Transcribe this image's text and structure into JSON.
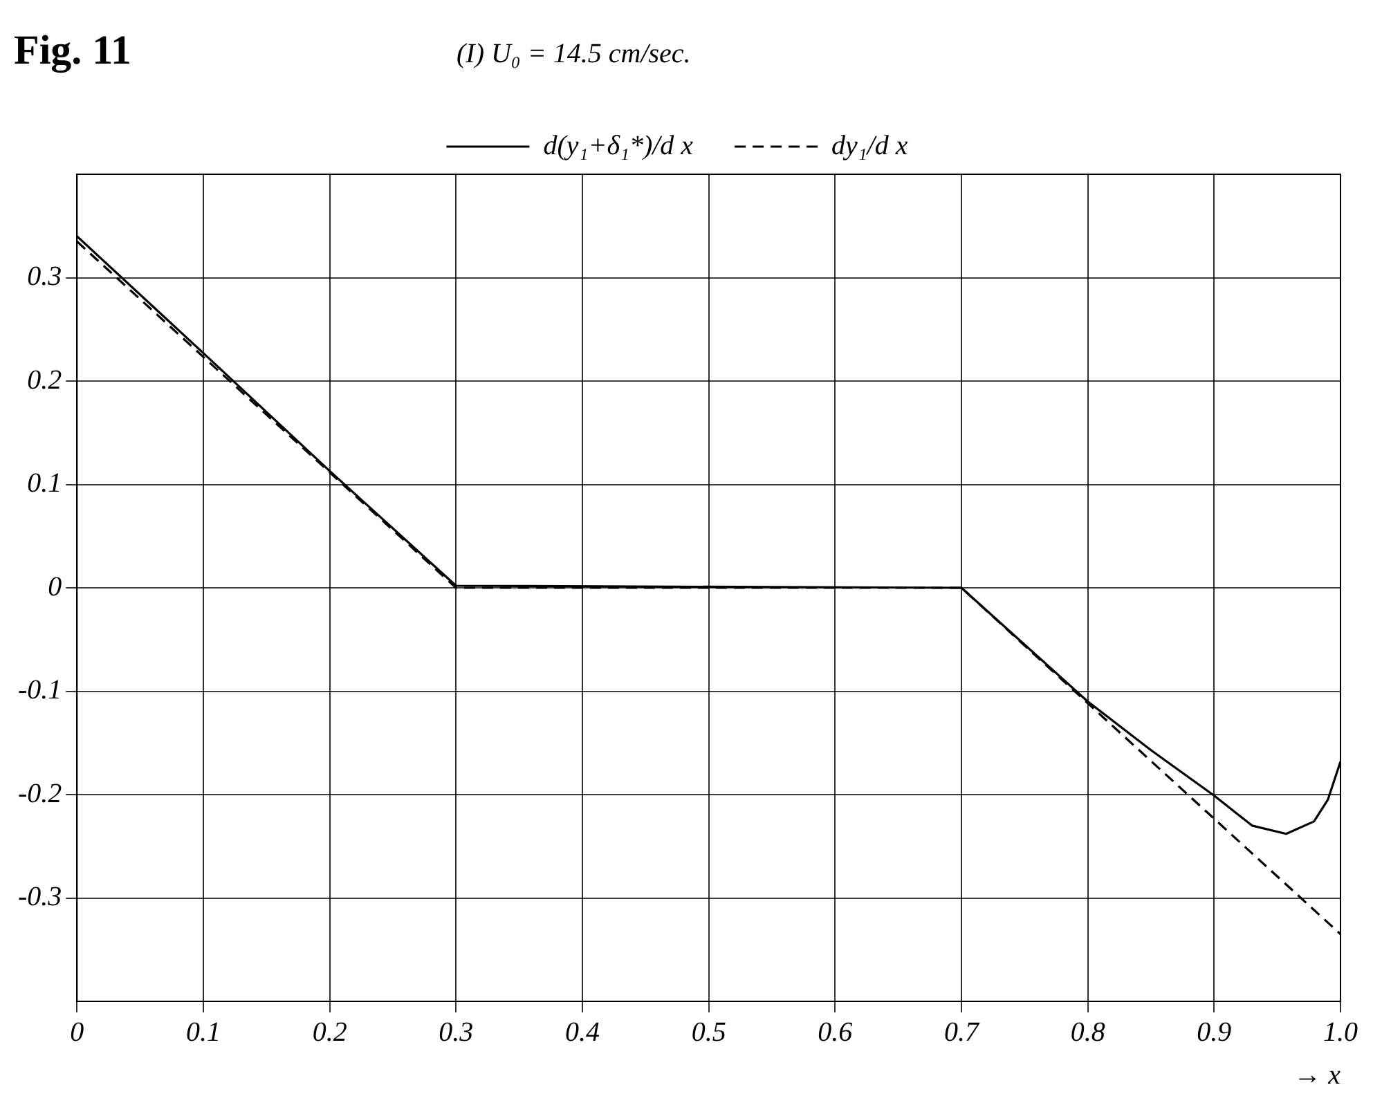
{
  "chart_data": {
    "type": "line",
    "title": "Fig. 11",
    "xlabel": "→ x",
    "annotations": [
      "(I)  U₀ = 14.5 cm/sec."
    ],
    "xlim": [
      0,
      1
    ],
    "ylim": [
      -0.4,
      0.4
    ],
    "xticks": [
      0,
      0.1,
      0.2,
      0.3,
      0.4,
      0.5,
      0.6,
      0.7,
      0.8,
      0.9,
      {
        "value": 1,
        "label": "1.0"
      }
    ],
    "yticks": [
      -0.3,
      -0.2,
      -0.1,
      0,
      0.1,
      0.2,
      0.3
    ],
    "grid": true,
    "legend": "top",
    "marker": "none",
    "series": [
      {
        "name": "d(y₁+δ₁*)/d x",
        "color": "#000000",
        "line_style": "solid",
        "x": [
          0,
          0.1,
          0.2,
          0.3,
          0.7,
          0.75,
          0.8,
          0.85,
          0.9,
          0.93,
          0.957,
          0.979,
          0.99,
          1.0
        ],
        "values": [
          0.34,
          0.227,
          0.113,
          0.002,
          0.0,
          -0.055,
          -0.11,
          -0.157,
          -0.201,
          -0.23,
          -0.238,
          -0.226,
          -0.205,
          -0.168
        ]
      },
      {
        "name": "dy₁/d x",
        "color": "#000000",
        "line_style": "dashed",
        "x": [
          0,
          0.3,
          0.7,
          1.0
        ],
        "values": [
          0.335,
          0.0,
          0.0,
          -0.335
        ]
      }
    ]
  }
}
